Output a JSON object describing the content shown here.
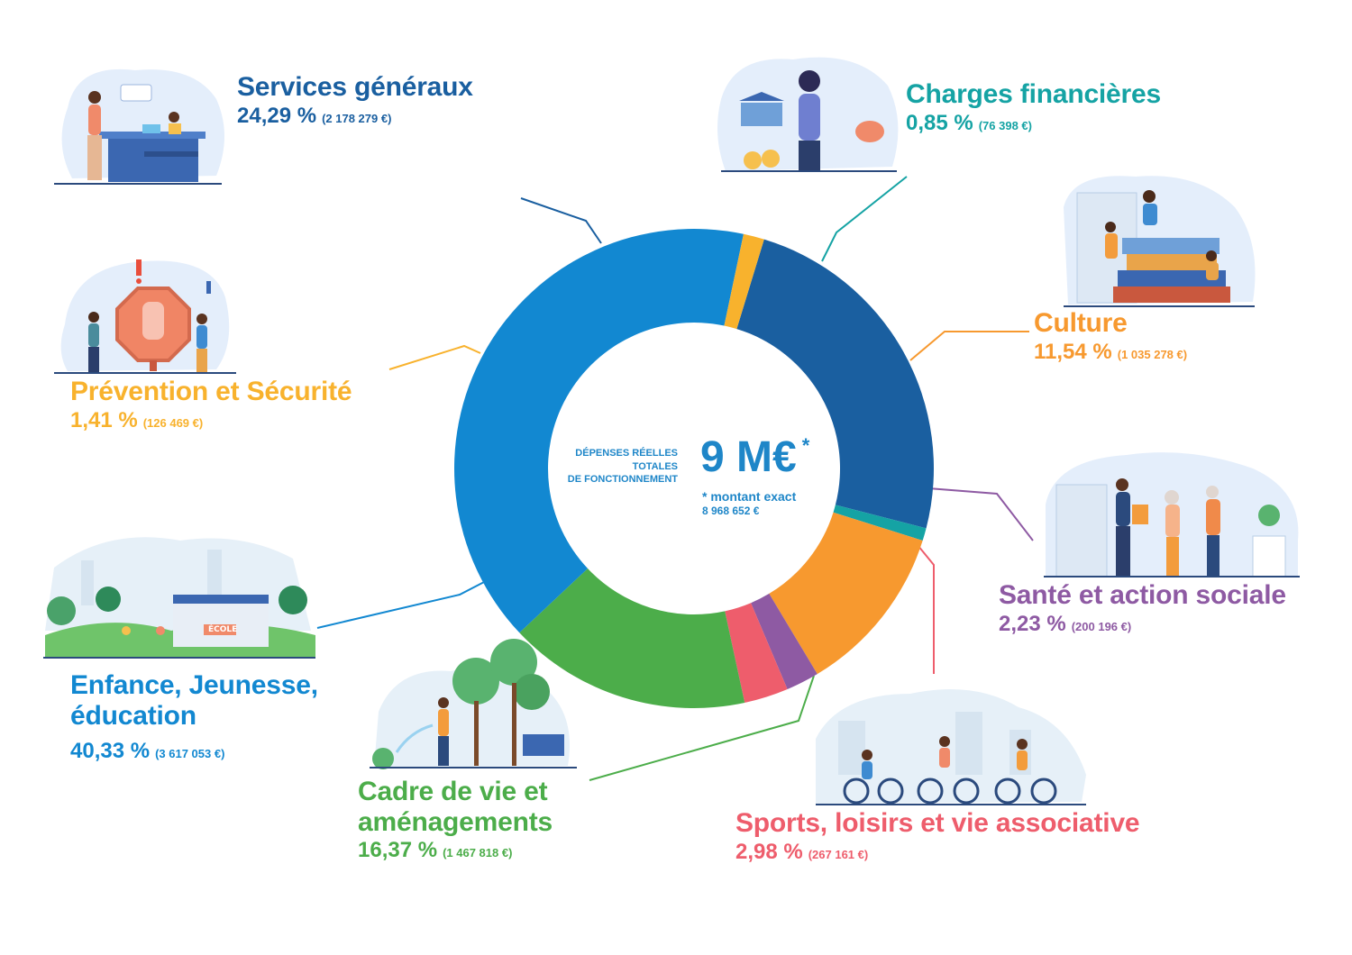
{
  "chart_data": {
    "type": "pie",
    "variant": "donut",
    "center": {
      "caption_line1": "DÉPENSES RÉELLES",
      "caption_line2": "TOTALES",
      "caption_line3": "DE FONCTIONNEMENT",
      "total": "9 M€",
      "total_mark": "*",
      "note_line1": "* montant exact",
      "note_line2": "8 968 652 €"
    },
    "slices": [
      {
        "label": "Services généraux",
        "percent": 24.29,
        "percent_text": "24,29 %",
        "amount_text": "(2 178 279 €)",
        "color": "#1a5fa0"
      },
      {
        "label": "Charges financières",
        "percent": 0.85,
        "percent_text": "0,85 %",
        "amount_text": "(76 398 €)",
        "color": "#15a3a4"
      },
      {
        "label": "Culture",
        "percent": 11.54,
        "percent_text": "11,54 %",
        "amount_text": "(1 035 278 €)",
        "color": "#f7992f"
      },
      {
        "label": "Santé et action sociale",
        "percent": 2.23,
        "percent_text": "2,23 %",
        "amount_text": "(200 196 €)",
        "color": "#8e5aa3"
      },
      {
        "label": "Sports, loisirs et vie associative",
        "percent": 2.98,
        "percent_text": "2,98 %",
        "amount_text": "(267 161 €)",
        "color": "#ee5d6c"
      },
      {
        "label": "Cadre de vie et",
        "label_line2": "aménagements",
        "percent": 16.37,
        "percent_text": "16,37 %",
        "amount_text": "(1 467 818 €)",
        "color": "#4cad4a"
      },
      {
        "label": "Enfance, Jeunesse,",
        "label_line2": "éducation",
        "percent": 40.33,
        "percent_text": "40,33 %",
        "amount_text": "(3 617 053 €)",
        "color": "#1288d1"
      },
      {
        "label": "Prévention et Sécurité",
        "percent": 1.41,
        "percent_text": "1,41 %",
        "amount_text": "(126 469 €)",
        "color": "#f8b22d"
      }
    ]
  },
  "illustrations": {
    "school_sign": "ÉCOLE"
  }
}
